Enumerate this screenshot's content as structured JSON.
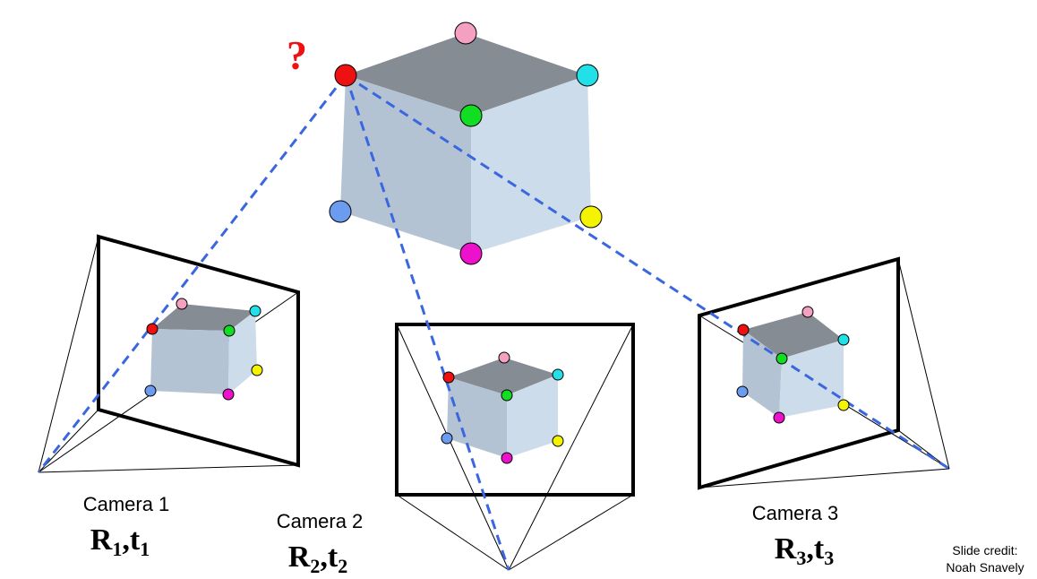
{
  "question_mark": "?",
  "cameras": [
    {
      "label": "Camera 1",
      "R": "R",
      "t": "t",
      "index": "1"
    },
    {
      "label": "Camera 2",
      "R": "R",
      "t": "t",
      "index": "2"
    },
    {
      "label": "Camera 3",
      "R": "R",
      "t": "t",
      "index": "3"
    }
  ],
  "credit": {
    "line1": "Slide credit:",
    "line2": "Noah Snavely"
  },
  "point_colors": {
    "red": "#ee1111",
    "pink": "#f4a0c0",
    "cyan": "#22e0e8",
    "green": "#11dd22",
    "yellow": "#f4f400",
    "blue": "#6c9cf0",
    "magenta": "#ee11cc"
  },
  "cube_colors": {
    "top": "#868c93",
    "front": "#b4c3d3",
    "side": "#cddcea"
  },
  "ray_color": "#3a66e0"
}
